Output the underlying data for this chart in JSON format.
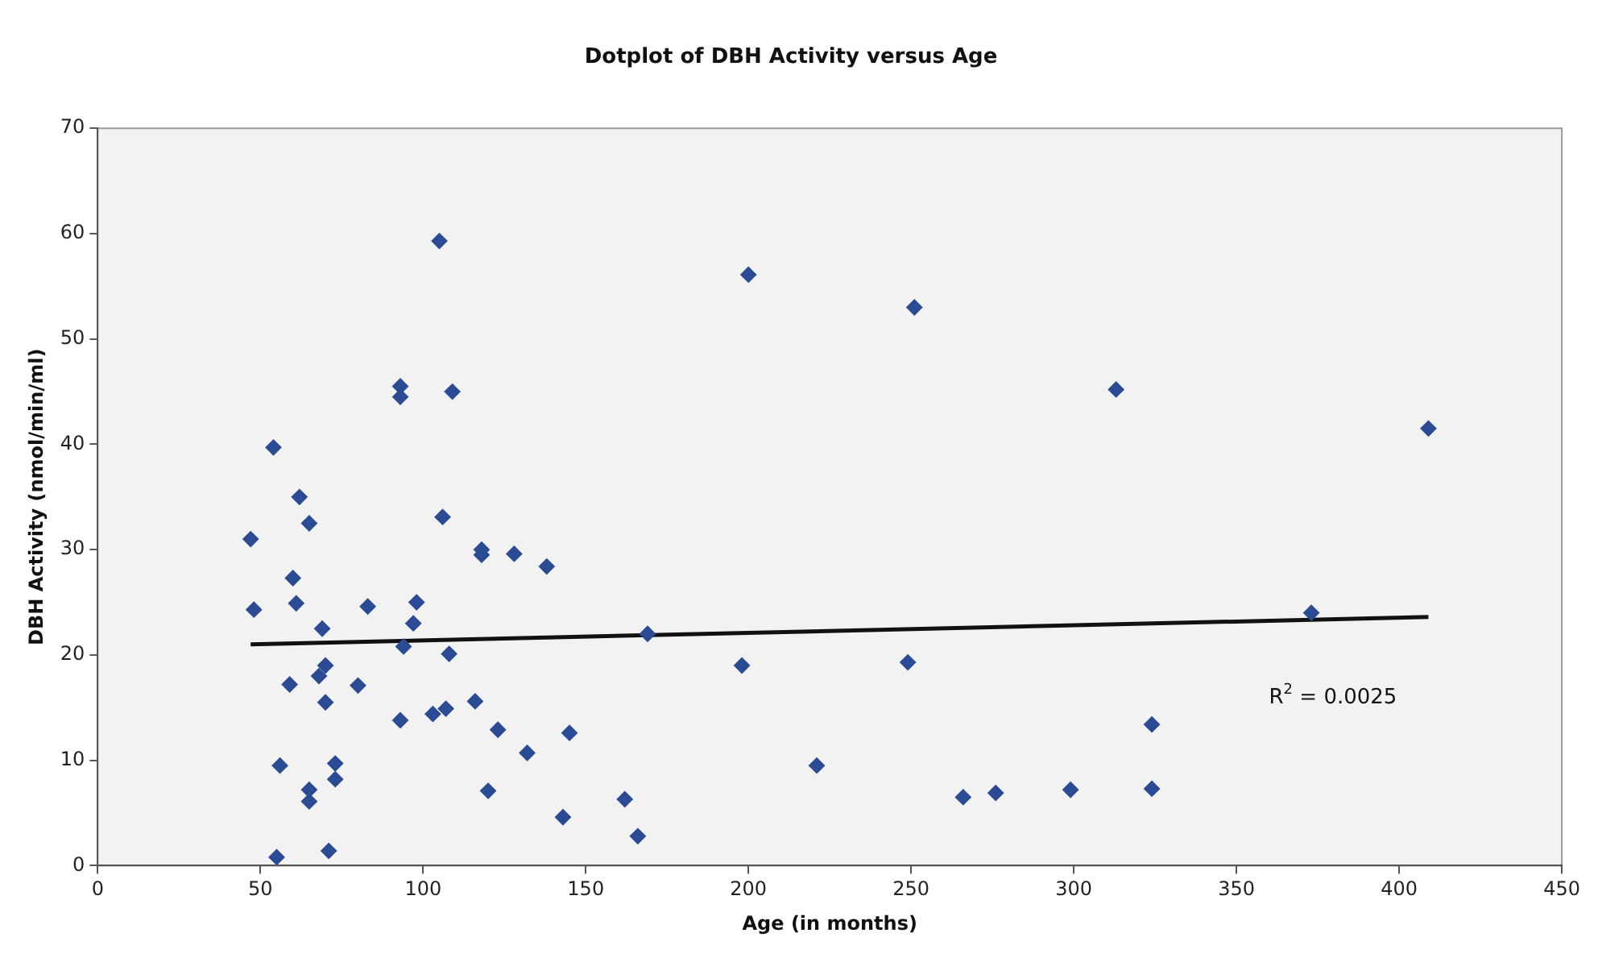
{
  "chart_data": {
    "type": "scatter",
    "title": "Dotplot of DBH Activity versus Age",
    "xlabel": "Age (in months)",
    "ylabel": "DBH Activity (nmol/min/ml)",
    "xlim": [
      0,
      450
    ],
    "xticks": [
      0,
      50,
      100,
      150,
      200,
      250,
      300,
      350,
      400,
      450
    ],
    "ylim": [
      0,
      70
    ],
    "yticks": [
      0,
      10,
      20,
      30,
      40,
      50,
      60,
      70
    ],
    "grid": false,
    "legend": false,
    "marker": "diamond",
    "annotations": [
      "R$^{2}$ = 0.0025"
    ],
    "series": [
      {
        "type": "scatter",
        "color": "#2b4b94",
        "x": [
          47,
          48,
          54,
          55,
          56,
          59,
          60,
          61,
          62,
          65,
          65,
          65,
          68,
          69,
          70,
          70,
          71,
          73,
          73,
          80,
          83,
          93,
          93,
          93,
          94,
          97,
          98,
          103,
          105,
          106,
          107,
          108,
          109,
          116,
          118,
          118,
          120,
          123,
          128,
          132,
          138,
          143,
          145,
          162,
          166,
          169,
          198,
          200,
          221,
          249,
          251,
          266,
          276,
          299,
          313,
          324,
          324,
          373,
          409
        ],
        "values": [
          31,
          24.3,
          39.7,
          0.8,
          9.5,
          17.2,
          27.3,
          24.9,
          35,
          32.5,
          7.2,
          6.1,
          18,
          22.5,
          19,
          15.5,
          1.4,
          9.7,
          8.2,
          17.1,
          24.6,
          13.8,
          45.5,
          44.5,
          20.8,
          23,
          25,
          14.4,
          59.3,
          33.1,
          14.9,
          20.1,
          45,
          15.6,
          30,
          29.5,
          7.1,
          12.9,
          29.6,
          10.7,
          28.4,
          4.6,
          12.6,
          6.3,
          2.8,
          22,
          19,
          56.1,
          9.5,
          19.3,
          53,
          6.5,
          6.9,
          7.2,
          45.2,
          13.4,
          7.3,
          24,
          41.5
        ]
      },
      {
        "type": "line",
        "color": "#111111",
        "marker": "none",
        "line_style": "solid",
        "x": [
          47,
          409
        ],
        "values": [
          21,
          23.6
        ]
      }
    ]
  }
}
